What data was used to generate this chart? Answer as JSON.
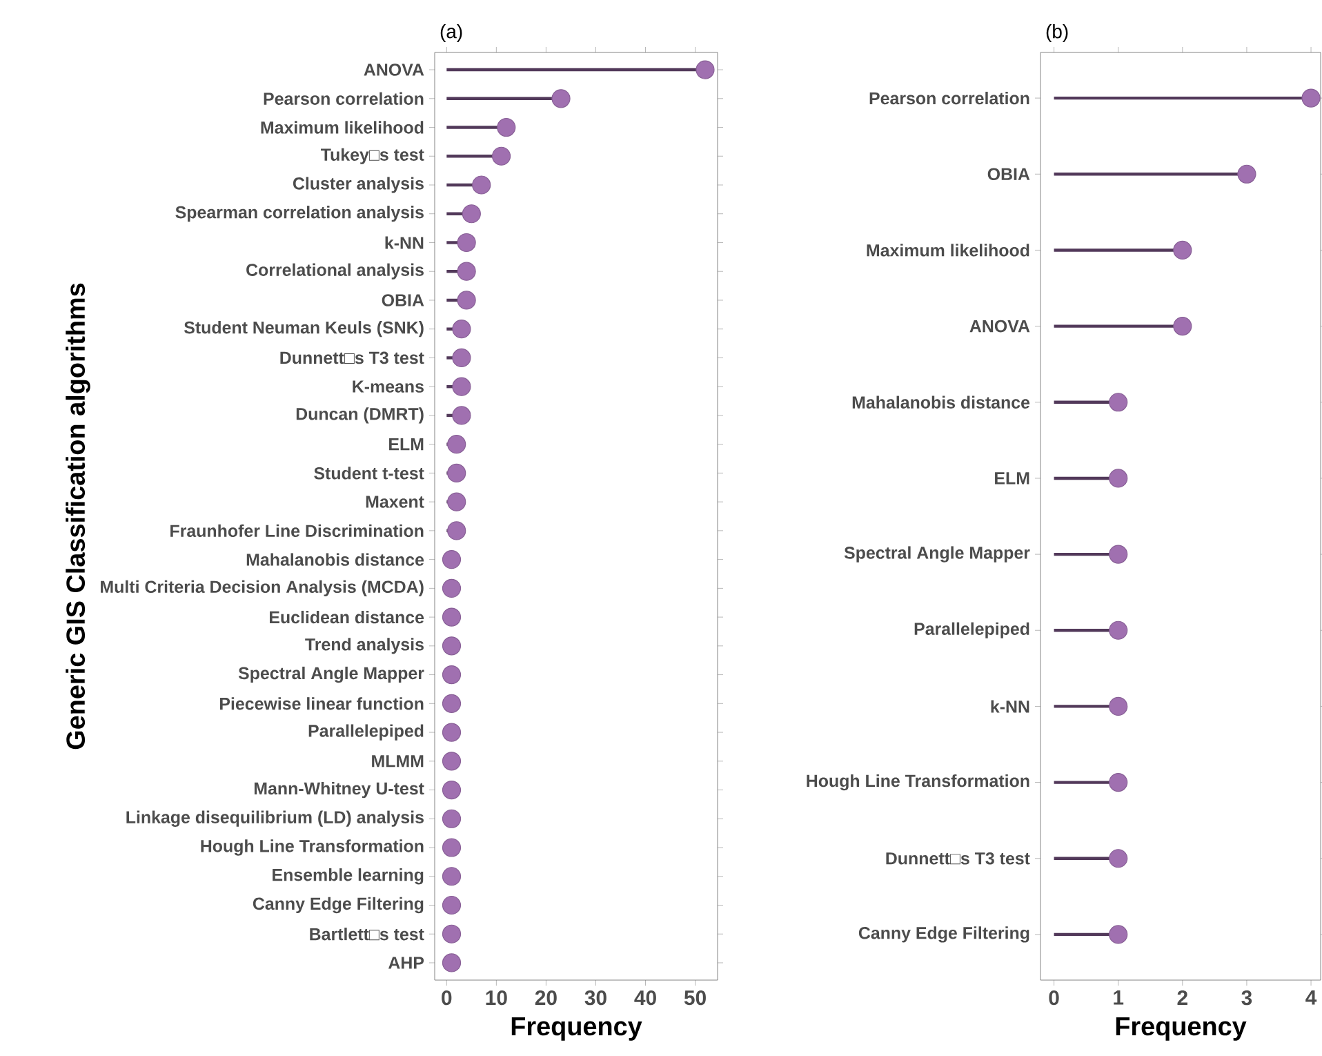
{
  "chart_data": [
    {
      "type": "lollipop",
      "orientation": "horizontal",
      "title": "(a)",
      "xlabel": "Frequency",
      "ylabel": "Generic GIS Classification algorithms",
      "color": "#a070b0",
      "categories": [
        "ANOVA",
        "Pearson correlation",
        "Maximum likelihood",
        "Tukey□s test",
        "Cluster analysis",
        "Spearman correlation analysis",
        "k-NN",
        "Correlational analysis",
        "OBIA",
        "Student Neuman Keuls (SNK)",
        "Dunnett□s T3 test",
        "K-means",
        "Duncan (DMRT)",
        "ELM",
        "Student t-test",
        "Maxent",
        "Fraunhofer Line Discrimination",
        "Mahalanobis distance",
        "Multi Criteria Decision Analysis (MCDA)",
        "Euclidean distance",
        "Trend analysis",
        "Spectral Angle Mapper",
        "Piecewise linear function",
        "Parallelepiped",
        "MLMM",
        "Mann-Whitney U-test",
        "Linkage disequilibrium (LD) analysis",
        "Hough Line Transformation",
        "Ensemble learning",
        "Canny Edge Filtering",
        "Bartlett□s test",
        "AHP"
      ],
      "values": [
        52,
        23,
        12,
        11,
        7,
        5,
        4,
        4,
        4,
        3,
        3,
        3,
        3,
        2,
        2,
        2,
        2,
        1,
        1,
        1,
        1,
        1,
        1,
        1,
        1,
        1,
        1,
        1,
        1,
        1,
        1,
        1
      ],
      "xlim": [
        -2.4,
        54.5
      ],
      "xticks": [
        0,
        10,
        20,
        30,
        40,
        50
      ]
    },
    {
      "type": "lollipop",
      "orientation": "horizontal",
      "title": "(b)",
      "xlabel": "Frequency",
      "color": "#a070b0",
      "categories": [
        "Pearson correlation",
        "OBIA",
        "Maximum likelihood",
        "ANOVA",
        "Mahalanobis distance",
        "ELM",
        "Spectral Angle Mapper",
        "Parallelepiped",
        "k-NN",
        "Hough Line Transformation",
        "Dunnett□s T3 test",
        "Canny Edge Filtering"
      ],
      "values": [
        4,
        3,
        2,
        2,
        1,
        1,
        1,
        1,
        1,
        1,
        1,
        1
      ],
      "xlim": [
        -0.21,
        4.15
      ],
      "xticks": [
        0,
        1,
        2,
        3,
        4
      ]
    }
  ]
}
